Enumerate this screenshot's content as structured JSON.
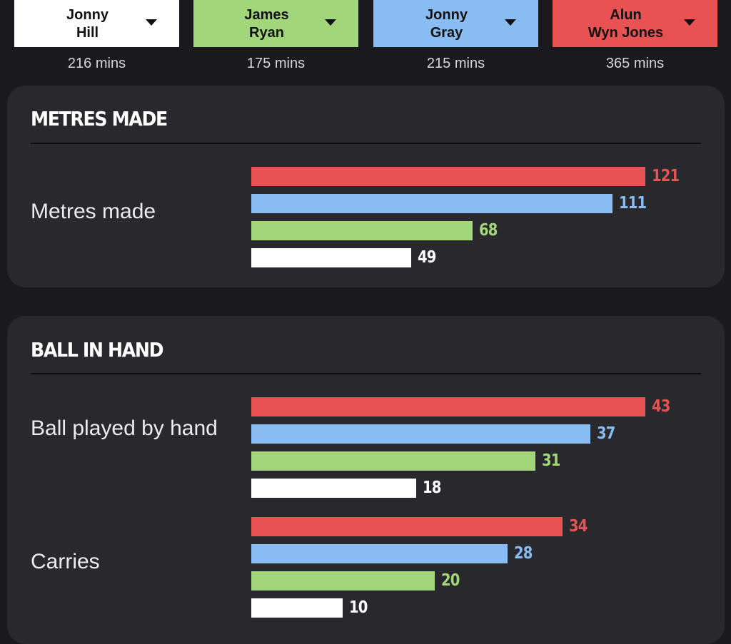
{
  "players": [
    {
      "name_line1": "Jonny",
      "name_line2": "Hill",
      "minutes": "216 mins",
      "color": "#ffffff"
    },
    {
      "name_line1": "James",
      "name_line2": "Ryan",
      "minutes": "175 mins",
      "color": "#a3d67b"
    },
    {
      "name_line1": "Jonny",
      "name_line2": "Gray",
      "minutes": "215 mins",
      "color": "#89bcf2"
    },
    {
      "name_line1": "Alun",
      "name_line2": "Wyn Jones",
      "minutes": "365 mins",
      "color": "#e85252"
    }
  ],
  "sections": [
    {
      "title": "METRES MADE"
    },
    {
      "title": "BALL IN HAND"
    }
  ],
  "chart_data": [
    {
      "type": "bar",
      "title": "METRES MADE",
      "categories": [
        "Metres made"
      ],
      "series": [
        {
          "name": "Alun Wyn Jones",
          "values": [
            121
          ]
        },
        {
          "name": "Jonny Gray",
          "values": [
            111
          ]
        },
        {
          "name": "James Ryan",
          "values": [
            68
          ]
        },
        {
          "name": "Jonny Hill",
          "values": [
            49
          ]
        }
      ]
    },
    {
      "type": "bar",
      "title": "BALL IN HAND",
      "categories": [
        "Ball played by hand",
        "Carries"
      ],
      "series": [
        {
          "name": "Alun Wyn Jones",
          "values": [
            43,
            34
          ]
        },
        {
          "name": "Jonny Gray",
          "values": [
            37,
            28
          ]
        },
        {
          "name": "James Ryan",
          "values": [
            31,
            20
          ]
        },
        {
          "name": "Jonny Hill",
          "values": [
            18,
            10
          ]
        }
      ]
    }
  ]
}
